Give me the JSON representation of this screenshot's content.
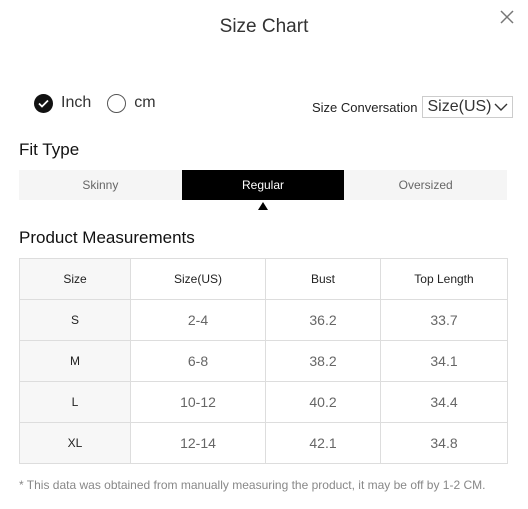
{
  "header": {
    "title": "Size Chart",
    "close_icon": "close-icon"
  },
  "units": {
    "options": [
      {
        "label": "Inch",
        "checked": true
      },
      {
        "label": "cm",
        "checked": false
      }
    ]
  },
  "size_conversion": {
    "label": "Size Conversation",
    "selected": "Size(US)",
    "icon": "chevron-down-icon"
  },
  "fit_type": {
    "title": "Fit Type",
    "tabs": [
      {
        "label": "Skinny",
        "active": false
      },
      {
        "label": "Regular",
        "active": true
      },
      {
        "label": "Oversized",
        "active": false
      }
    ]
  },
  "measurements": {
    "title": "Product Measurements",
    "headers": [
      "Size",
      "Size(US)",
      "Bust",
      "Top Length"
    ],
    "rows": [
      [
        "S",
        "2-4",
        "36.2",
        "33.7"
      ],
      [
        "M",
        "6-8",
        "38.2",
        "34.1"
      ],
      [
        "L",
        "10-12",
        "40.2",
        "34.4"
      ],
      [
        "XL",
        "12-14",
        "42.1",
        "34.8"
      ]
    ]
  },
  "note": "* This data was obtained from manually measuring the product, it may be off by 1-2 CM.",
  "colors": {
    "active_tab": "#000000",
    "tab_bg": "#f5f5f5",
    "border": "#dddddd"
  }
}
